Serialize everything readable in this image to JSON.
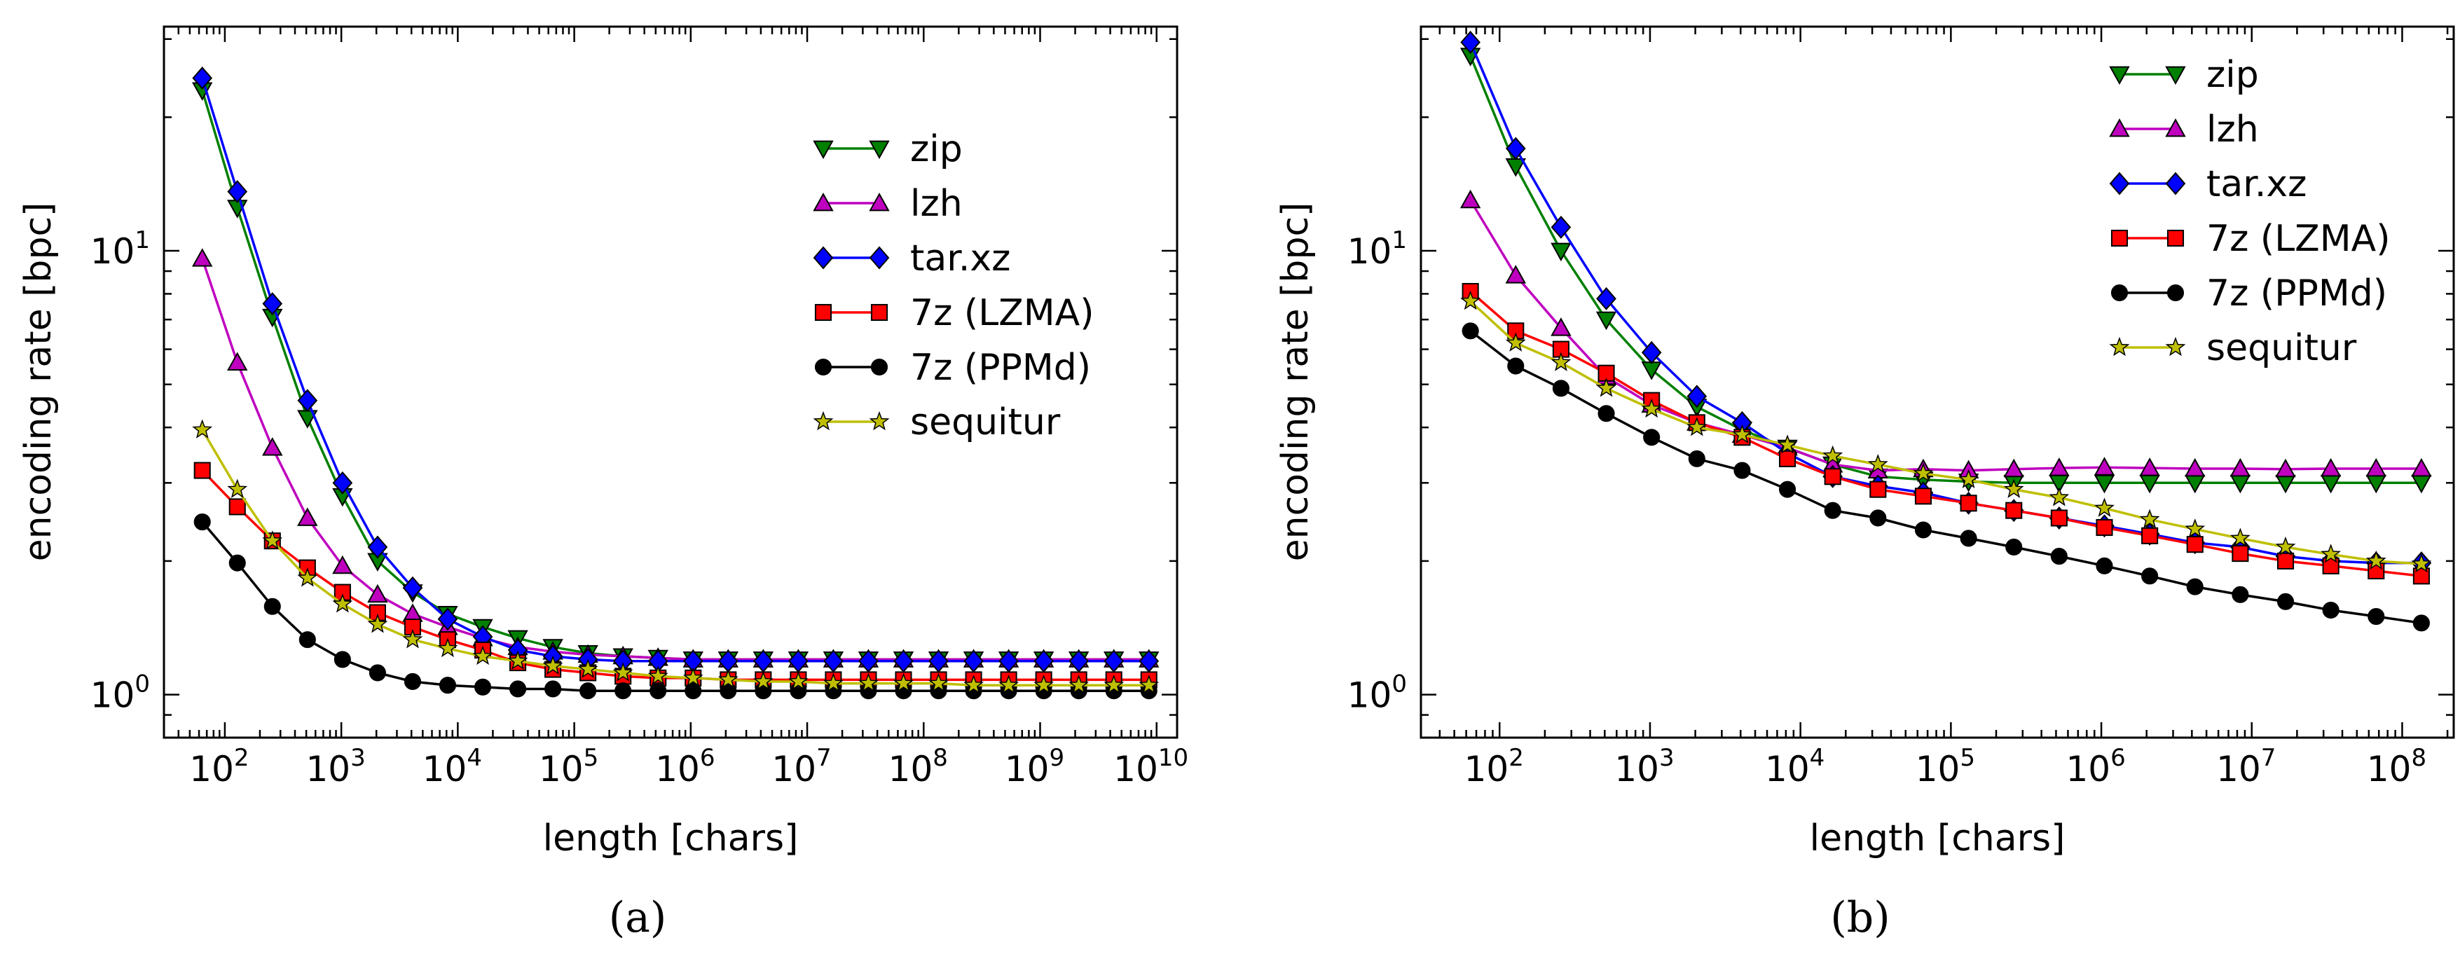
{
  "chart_data": [
    {
      "panel_label": "(a)",
      "type": "line",
      "title": "",
      "xlabel": "length [chars]",
      "ylabel": "encoding rate [bpc]",
      "x_scale": "log",
      "y_scale": "log",
      "xlim": [
        30,
        15000000000
      ],
      "ylim": [
        0.8,
        32
      ],
      "xticks": [
        {
          "value": 100,
          "base": "10",
          "exp": "2"
        },
        {
          "value": 1000,
          "base": "10",
          "exp": "3"
        },
        {
          "value": 10000,
          "base": "10",
          "exp": "4"
        },
        {
          "value": 100000,
          "base": "10",
          "exp": "5"
        },
        {
          "value": 1000000,
          "base": "10",
          "exp": "6"
        },
        {
          "value": 10000000,
          "base": "10",
          "exp": "7"
        },
        {
          "value": 100000000,
          "base": "10",
          "exp": "8"
        },
        {
          "value": 1000000000,
          "base": "10",
          "exp": "9"
        },
        {
          "value": 10000000000,
          "base": "10",
          "exp": "10"
        }
      ],
      "yticks": [
        {
          "value": 1,
          "base": "10",
          "exp": "0"
        },
        {
          "value": 10,
          "base": "10",
          "exp": "1"
        }
      ],
      "legend_position": "upper right",
      "x": [
        64,
        128,
        256,
        512,
        1024,
        2048,
        4096,
        8192,
        16384,
        32768,
        65536,
        131072,
        262144,
        524288,
        1048576,
        2097152,
        4194304,
        8388608,
        16777216,
        33554432,
        67108864,
        134217728,
        268435456,
        536870912,
        1073741824,
        2147483648,
        4294967296,
        8589934592
      ],
      "series": [
        {
          "name": "zip",
          "color": "#008000",
          "marker": "triangle-down",
          "values": [
            23,
            12.5,
            7.1,
            4.2,
            2.8,
            2.0,
            1.7,
            1.52,
            1.42,
            1.34,
            1.28,
            1.24,
            1.22,
            1.21,
            1.2,
            1.2,
            1.2,
            1.2,
            1.2,
            1.2,
            1.2,
            1.2,
            1.2,
            1.2,
            1.2,
            1.2,
            1.2,
            1.2
          ]
        },
        {
          "name": "lzh",
          "color": "#bf00bf",
          "marker": "triangle-up",
          "values": [
            9.6,
            5.6,
            3.6,
            2.5,
            1.95,
            1.68,
            1.52,
            1.42,
            1.34,
            1.28,
            1.25,
            1.23,
            1.22,
            1.21,
            1.2,
            1.2,
            1.2,
            1.2,
            1.2,
            1.2,
            1.2,
            1.2,
            1.2,
            1.2,
            1.2,
            1.2,
            1.2,
            1.2
          ]
        },
        {
          "name": "tar.xz",
          "color": "#0000ff",
          "marker": "diamond",
          "values": [
            24.5,
            13.6,
            7.6,
            4.6,
            3.0,
            2.15,
            1.74,
            1.48,
            1.35,
            1.26,
            1.22,
            1.2,
            1.19,
            1.19,
            1.19,
            1.19,
            1.19,
            1.19,
            1.19,
            1.19,
            1.19,
            1.19,
            1.19,
            1.19,
            1.19,
            1.19,
            1.19,
            1.19
          ]
        },
        {
          "name": "7z (LZMA)",
          "color": "#ff0000",
          "marker": "square",
          "values": [
            3.2,
            2.65,
            2.22,
            1.93,
            1.7,
            1.53,
            1.42,
            1.33,
            1.26,
            1.18,
            1.14,
            1.12,
            1.1,
            1.09,
            1.09,
            1.08,
            1.08,
            1.08,
            1.08,
            1.08,
            1.08,
            1.08,
            1.08,
            1.08,
            1.08,
            1.08,
            1.08,
            1.08
          ]
        },
        {
          "name": "7z (PPMd)",
          "color": "#000000",
          "marker": "circle",
          "values": [
            2.45,
            1.98,
            1.58,
            1.33,
            1.2,
            1.12,
            1.07,
            1.05,
            1.04,
            1.03,
            1.03,
            1.02,
            1.02,
            1.02,
            1.02,
            1.02,
            1.02,
            1.02,
            1.02,
            1.02,
            1.02,
            1.02,
            1.02,
            1.02,
            1.02,
            1.02,
            1.02,
            1.02
          ]
        },
        {
          "name": "sequitur",
          "color": "#bfbf00",
          "marker": "star",
          "values": [
            3.95,
            2.9,
            2.22,
            1.83,
            1.6,
            1.44,
            1.33,
            1.27,
            1.22,
            1.19,
            1.16,
            1.14,
            1.12,
            1.1,
            1.09,
            1.08,
            1.07,
            1.07,
            1.06,
            1.06,
            1.06,
            1.06,
            1.05,
            1.05,
            1.05,
            1.05,
            1.05,
            1.05
          ]
        }
      ]
    },
    {
      "panel_label": "(b)",
      "type": "line",
      "title": "",
      "xlabel": "length [chars]",
      "ylabel": "encoding rate [bpc]",
      "x_scale": "log",
      "y_scale": "log",
      "xlim": [
        30,
        220000000
      ],
      "ylim": [
        0.8,
        32
      ],
      "xticks": [
        {
          "value": 100,
          "base": "10",
          "exp": "2"
        },
        {
          "value": 1000,
          "base": "10",
          "exp": "3"
        },
        {
          "value": 10000,
          "base": "10",
          "exp": "4"
        },
        {
          "value": 100000,
          "base": "10",
          "exp": "5"
        },
        {
          "value": 1000000,
          "base": "10",
          "exp": "6"
        },
        {
          "value": 10000000,
          "base": "10",
          "exp": "7"
        },
        {
          "value": 100000000,
          "base": "10",
          "exp": "8"
        }
      ],
      "yticks": [
        {
          "value": 1,
          "base": "10",
          "exp": "0"
        },
        {
          "value": 10,
          "base": "10",
          "exp": "1"
        }
      ],
      "legend_position": "upper right",
      "x": [
        64,
        128,
        256,
        512,
        1024,
        2048,
        4096,
        8192,
        16384,
        32768,
        65536,
        131072,
        262144,
        524288,
        1048576,
        2097152,
        4194304,
        8388608,
        16777216,
        33554432,
        67108864,
        134217728
      ],
      "series": [
        {
          "name": "zip",
          "color": "#008000",
          "marker": "triangle-down",
          "values": [
            27.5,
            15.5,
            10,
            7,
            5.4,
            4.45,
            3.95,
            3.6,
            3.3,
            3.1,
            3.05,
            3.02,
            3.0,
            3.0,
            3.0,
            3.0,
            3.0,
            3.0,
            3.0,
            3.0,
            3.0,
            3.0
          ]
        },
        {
          "name": "lzh",
          "color": "#bf00bf",
          "marker": "triangle-up",
          "values": [
            13,
            8.8,
            6.7,
            5.2,
            4.5,
            4.1,
            3.85,
            3.6,
            3.3,
            3.2,
            3.22,
            3.2,
            3.22,
            3.24,
            3.25,
            3.24,
            3.23,
            3.23,
            3.22,
            3.23,
            3.23,
            3.23
          ]
        },
        {
          "name": "tar.xz",
          "color": "#0000ff",
          "marker": "diamond",
          "values": [
            29.5,
            17,
            11.3,
            7.8,
            5.9,
            4.7,
            4.1,
            3.5,
            3.1,
            2.95,
            2.85,
            2.7,
            2.6,
            2.5,
            2.4,
            2.3,
            2.2,
            2.15,
            2.05,
            2.0,
            1.98,
            1.98
          ]
        },
        {
          "name": "7z (LZMA)",
          "color": "#ff0000",
          "marker": "square",
          "values": [
            8.1,
            6.6,
            6.0,
            5.3,
            4.6,
            4.1,
            3.8,
            3.4,
            3.1,
            2.9,
            2.8,
            2.7,
            2.6,
            2.5,
            2.38,
            2.28,
            2.18,
            2.08,
            2.0,
            1.95,
            1.9,
            1.85
          ]
        },
        {
          "name": "7z (PPMd)",
          "color": "#000000",
          "marker": "circle",
          "values": [
            6.6,
            5.5,
            4.9,
            4.3,
            3.8,
            3.4,
            3.2,
            2.9,
            2.6,
            2.5,
            2.35,
            2.25,
            2.15,
            2.05,
            1.95,
            1.85,
            1.75,
            1.68,
            1.62,
            1.55,
            1.5,
            1.45
          ]
        },
        {
          "name": "sequitur",
          "color": "#bfbf00",
          "marker": "star",
          "values": [
            7.7,
            6.2,
            5.6,
            4.9,
            4.4,
            4.0,
            3.85,
            3.65,
            3.45,
            3.3,
            3.15,
            3.05,
            2.9,
            2.78,
            2.63,
            2.48,
            2.36,
            2.25,
            2.15,
            2.07,
            2.0,
            1.97
          ]
        }
      ]
    }
  ]
}
